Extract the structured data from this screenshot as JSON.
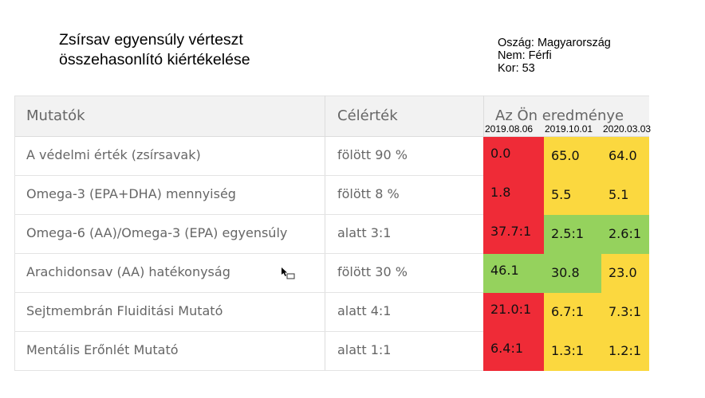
{
  "title": {
    "line1": "Zsírsav egyensúly vérteszt",
    "line2": "összehasonlító kiértékelése"
  },
  "meta": {
    "country": "Oszág: Magyarország",
    "sex": "Nem: Férfi",
    "age": "Kor: 53"
  },
  "table": {
    "headers": {
      "indicators": "Mutatók",
      "target": "Célérték",
      "result": "Az Ön eredménye"
    },
    "dates": [
      "2019.08.06",
      "2019.10.01",
      "2020.03.03"
    ],
    "rows": [
      {
        "label": "A védelmi érték (zsírsavak)",
        "target": "fölött 90 %",
        "values": [
          "0.0",
          "65.0",
          "64.0"
        ]
      },
      {
        "label": "Omega-3 (EPA+DHA) mennyiség",
        "target": "fölött 8 %",
        "values": [
          "1.8",
          "5.5",
          "5.1"
        ]
      },
      {
        "label": "Omega-6 (AA)/Omega-3 (EPA) egyensúly",
        "target": "alatt 3:1",
        "values": [
          "37.7:1",
          "2.5:1",
          "2.6:1"
        ]
      },
      {
        "label": "Arachidonsav (AA)  hatékonyság",
        "target": "fölött 30 %",
        "values": [
          "46.1",
          "30.8",
          "23.0"
        ]
      },
      {
        "label": "Sejtmembrán Fluiditási Mutató",
        "target": "alatt 4:1",
        "values": [
          "21.0:1",
          "6.7:1",
          "7.3:1"
        ]
      },
      {
        "label": "Mentális Erőnlét Mutató",
        "target": "alatt 1:1",
        "values": [
          "6.4:1",
          "1.3:1",
          "1.2:1"
        ]
      }
    ],
    "status_colors": {
      "red": "#ef2b37",
      "yellow": "#fbd83f",
      "green": "#95d25d"
    },
    "cell_status": [
      [
        "red",
        "yellow",
        "yellow"
      ],
      [
        "red",
        "yellow",
        "yellow"
      ],
      [
        "red",
        "green",
        "green"
      ],
      [
        "green",
        "green",
        "yellow"
      ],
      [
        "red",
        "yellow",
        "yellow"
      ],
      [
        "red",
        "yellow",
        "yellow"
      ]
    ]
  }
}
